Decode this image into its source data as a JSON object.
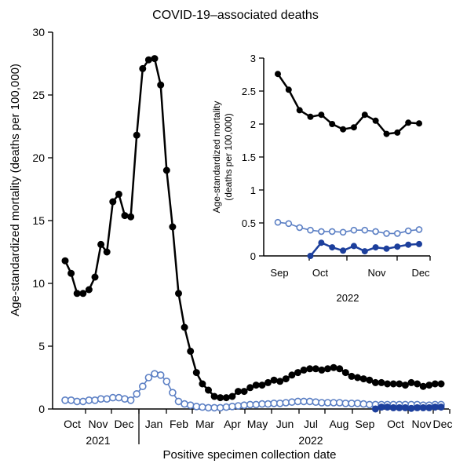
{
  "colors": {
    "black_series": "#000000",
    "open_series": "#5b7fc4",
    "blue_series": "#1c3f9c",
    "axis": "#000000"
  },
  "chart_data": [
    {
      "type": "line",
      "title": "COVID-19–associated deaths",
      "xlabel": "Positive specimen collection date",
      "ylabel": "Age-standardized mortality (deaths per 100,000)",
      "ylim": [
        0,
        30
      ],
      "yticks": [
        0,
        5,
        10,
        15,
        20,
        25,
        30
      ],
      "x_tick_labels": [
        "Oct",
        "Nov",
        "Dec",
        "Jan",
        "Feb",
        "Mar",
        "Apr",
        "May",
        "Jun",
        "Jul",
        "Aug",
        "Sep",
        "Oct",
        "Nov",
        "Dec"
      ],
      "year_labels": [
        "2021",
        "2022"
      ],
      "grid": false,
      "legend": "none",
      "series": [
        {
          "style": "black-filled",
          "values": [
            11.8,
            10.8,
            9.2,
            9.2,
            9.5,
            10.5,
            13.1,
            12.5,
            16.5,
            17.1,
            15.4,
            15.3,
            21.8,
            27.1,
            27.8,
            27.9,
            25.8,
            19.0,
            14.5,
            9.2,
            6.5,
            4.6,
            2.9,
            2.0,
            1.5,
            1.0,
            0.9,
            0.9,
            1.0,
            1.4,
            1.4,
            1.7,
            1.9,
            1.9,
            2.1,
            2.3,
            2.2,
            2.4,
            2.7,
            2.9,
            3.1,
            3.2,
            3.2,
            3.1,
            3.2,
            3.3,
            3.2,
            2.9,
            2.6,
            2.5,
            2.4,
            2.3,
            2.1,
            2.1,
            2.0,
            2.0,
            2.0,
            1.9,
            2.1,
            2.0,
            1.8,
            1.9,
            2.0,
            2.0
          ]
        },
        {
          "style": "blue-open",
          "values": [
            0.7,
            0.7,
            0.6,
            0.6,
            0.7,
            0.7,
            0.8,
            0.8,
            0.9,
            0.9,
            0.8,
            0.7,
            1.2,
            1.8,
            2.5,
            2.8,
            2.7,
            2.2,
            1.3,
            0.6,
            0.4,
            0.3,
            0.2,
            0.15,
            0.1,
            0.1,
            0.1,
            0.15,
            0.2,
            0.25,
            0.3,
            0.35,
            0.35,
            0.4,
            0.4,
            0.45,
            0.45,
            0.5,
            0.55,
            0.6,
            0.6,
            0.6,
            0.55,
            0.5,
            0.5,
            0.5,
            0.5,
            0.45,
            0.45,
            0.45,
            0.4,
            0.35,
            0.35,
            0.35,
            0.35,
            0.35,
            0.35,
            0.35,
            0.35,
            0.35,
            0.3,
            0.3,
            0.35,
            0.35
          ]
        },
        {
          "style": "blue-filled",
          "start_index": 52,
          "values": [
            0.0,
            0.15,
            0.15,
            0.1,
            0.1,
            0.1,
            0.05,
            0.1,
            0.1,
            0.1,
            0.15,
            0.15
          ]
        }
      ]
    },
    {
      "type": "line",
      "title": "",
      "xlabel": "2022",
      "ylabel": "Age-standardized mortality (deaths per 100,000)",
      "ylim": [
        0,
        3
      ],
      "yticks": [
        0,
        0.5,
        1,
        1.5,
        2,
        2.5,
        3
      ],
      "x_tick_labels": [
        "Sep",
        "Oct",
        "Nov",
        "Dec"
      ],
      "grid": false,
      "legend": "none",
      "series": [
        {
          "style": "black-filled",
          "values": [
            2.76,
            2.52,
            2.21,
            2.11,
            2.14,
            2.0,
            1.92,
            1.95,
            2.14,
            2.05,
            1.85,
            1.87,
            2.02,
            2.01
          ]
        },
        {
          "style": "blue-open",
          "values": [
            0.51,
            0.49,
            0.43,
            0.39,
            0.37,
            0.37,
            0.36,
            0.39,
            0.39,
            0.37,
            0.34,
            0.34,
            0.38,
            0.4
          ]
        },
        {
          "style": "blue-filled",
          "start_index": 3,
          "values": [
            0.0,
            0.2,
            0.13,
            0.08,
            0.15,
            0.07,
            0.13,
            0.11,
            0.14,
            0.17,
            0.18
          ]
        }
      ]
    }
  ]
}
